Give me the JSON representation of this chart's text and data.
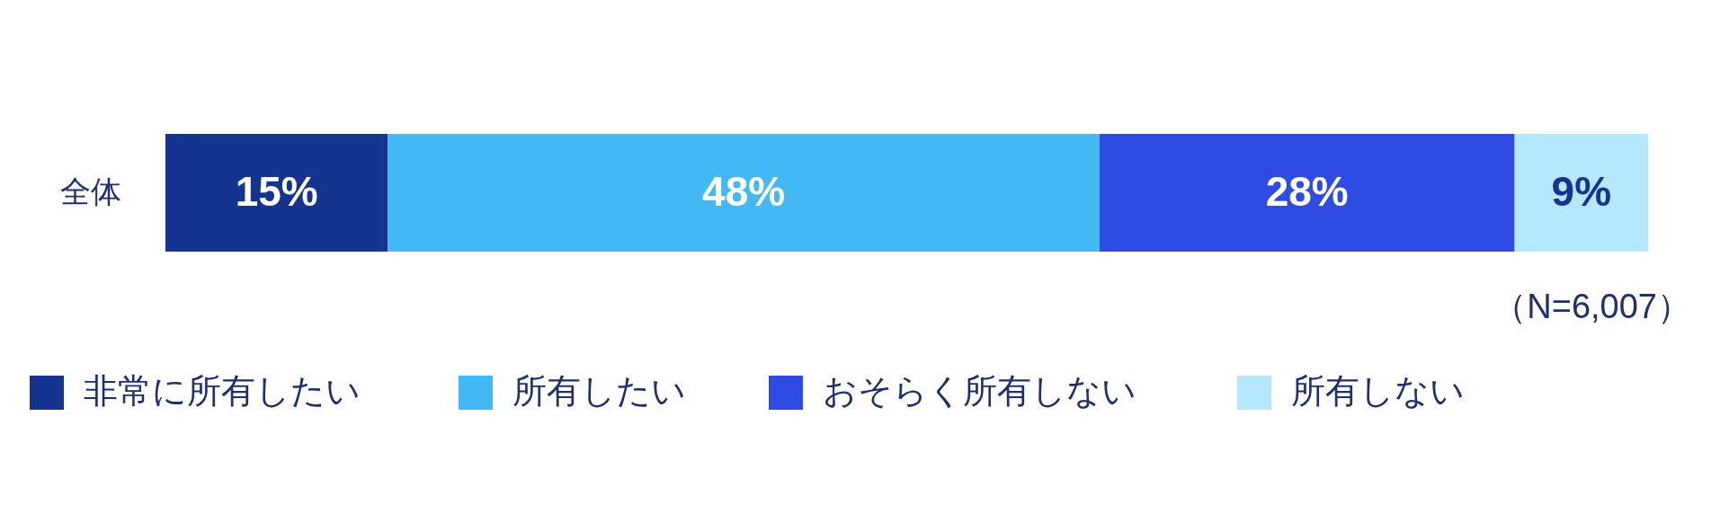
{
  "chart_data": {
    "type": "bar",
    "orientation": "horizontal",
    "stacked": true,
    "categories": [
      "全体"
    ],
    "series": [
      {
        "name": "非常に所有したい",
        "color": "#14348f",
        "values": [
          15
        ],
        "value_labels": [
          "15%"
        ]
      },
      {
        "name": "所有したい",
        "color": "#42b9f5",
        "values": [
          48
        ],
        "value_labels": [
          "48%"
        ]
      },
      {
        "name": "おそらく所有しない",
        "color": "#2e4ce4",
        "values": [
          28
        ],
        "value_labels": [
          "28%"
        ]
      },
      {
        "name": "所有しない",
        "color": "#b5e8fc",
        "values": [
          9
        ],
        "value_labels": [
          "9%"
        ]
      }
    ],
    "xlim": [
      0,
      100
    ],
    "tick_labels": "y",
    "legend": "bottom left",
    "annotations": [
      "（N=6,007）"
    ]
  }
}
